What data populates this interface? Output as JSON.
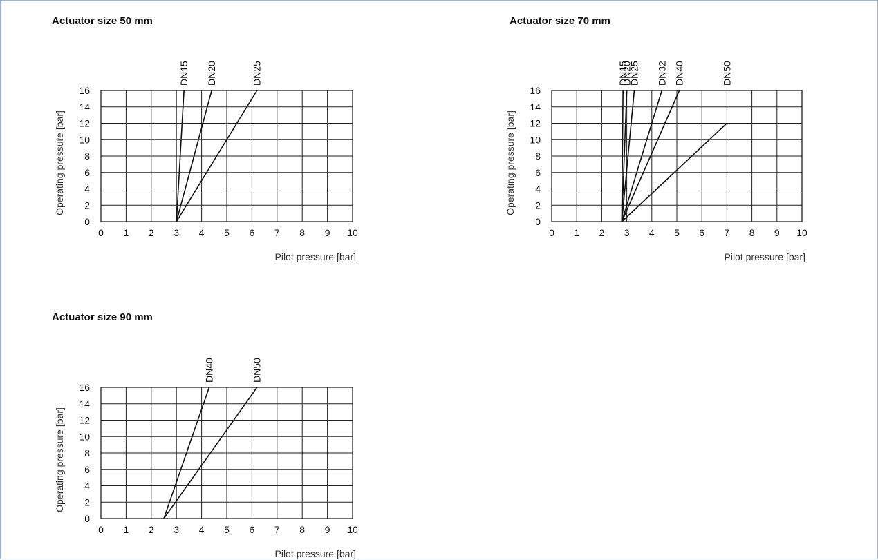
{
  "chart_data": [
    {
      "type": "line",
      "title": "Actuator size 50 mm",
      "xlabel": "Pilot pressure [bar]",
      "ylabel": "Operating pressure [bar]",
      "xlim": [
        0,
        10
      ],
      "ylim": [
        0,
        16
      ],
      "xticks": [
        0,
        1,
        2,
        3,
        4,
        5,
        6,
        7,
        8,
        9,
        10
      ],
      "yticks": [
        0,
        2,
        4,
        6,
        8,
        10,
        12,
        14,
        16
      ],
      "grid": true,
      "series": [
        {
          "name": "DN15",
          "x": [
            3.0,
            3.3
          ],
          "y": [
            0,
            16
          ]
        },
        {
          "name": "DN20",
          "x": [
            3.0,
            4.4
          ],
          "y": [
            0,
            16
          ]
        },
        {
          "name": "DN25",
          "x": [
            3.0,
            6.2
          ],
          "y": [
            0,
            16
          ]
        }
      ]
    },
    {
      "type": "line",
      "title": "Actuator size 70 mm",
      "xlabel": "Pilot pressure [bar]",
      "ylabel": "Operating pressure [bar]",
      "xlim": [
        0,
        10
      ],
      "ylim": [
        0,
        16
      ],
      "xticks": [
        0,
        1,
        2,
        3,
        4,
        5,
        6,
        7,
        8,
        9,
        10
      ],
      "yticks": [
        0,
        2,
        4,
        6,
        8,
        10,
        12,
        14,
        16
      ],
      "grid": true,
      "series": [
        {
          "name": "DN15",
          "x": [
            2.8,
            2.85
          ],
          "y": [
            0,
            16
          ]
        },
        {
          "name": "DN20",
          "x": [
            2.8,
            3.0
          ],
          "y": [
            0,
            16
          ]
        },
        {
          "name": "DN25",
          "x": [
            2.8,
            3.3
          ],
          "y": [
            0,
            16
          ]
        },
        {
          "name": "DN32",
          "x": [
            2.8,
            4.4
          ],
          "y": [
            0,
            16
          ]
        },
        {
          "name": "DN40",
          "x": [
            2.8,
            5.1
          ],
          "y": [
            0,
            16
          ]
        },
        {
          "name": "DN50",
          "x": [
            2.8,
            7.0
          ],
          "y": [
            0,
            12
          ]
        }
      ]
    },
    {
      "type": "line",
      "title": "Actuator size 90 mm",
      "xlabel": "Pilot pressure [bar]",
      "ylabel": "Operating pressure [bar]",
      "xlim": [
        0,
        10
      ],
      "ylim": [
        0,
        16
      ],
      "xticks": [
        0,
        1,
        2,
        3,
        4,
        5,
        6,
        7,
        8,
        9,
        10
      ],
      "yticks": [
        0,
        2,
        4,
        6,
        8,
        10,
        12,
        14,
        16
      ],
      "grid": true,
      "series": [
        {
          "name": "DN40",
          "x": [
            2.5,
            4.3
          ],
          "y": [
            0,
            16
          ]
        },
        {
          "name": "DN50",
          "x": [
            2.5,
            6.2
          ],
          "y": [
            0,
            16
          ]
        }
      ]
    }
  ]
}
